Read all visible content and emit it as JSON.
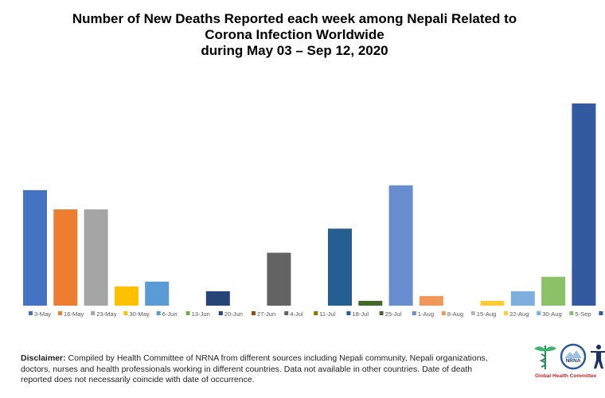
{
  "chart_data": {
    "type": "bar",
    "title_lines": [
      "Number of New Deaths Reported each week among Nepali Related to",
      "Corona Infection Worldwide",
      "during May 03 – Sep 12, 2020"
    ],
    "categories": [
      "3-May",
      "16-May",
      "23-May",
      "30-May",
      "6-Jun",
      "13-Jun",
      "20-Jun",
      "27-Jun",
      "4-Jul",
      "11-Jul",
      "18-Jul",
      "25-Jul",
      "1-Aug",
      "8-Aug",
      "15-Aug",
      "22-Aug",
      "30-Aug",
      "5-Sep",
      "12-Sep"
    ],
    "values": [
      24,
      20,
      20,
      4,
      5,
      0,
      3,
      0,
      11,
      0,
      16,
      1,
      25,
      2,
      0,
      1,
      3,
      6,
      42
    ],
    "colors": [
      "#4472C4",
      "#ED7D31",
      "#A5A5A5",
      "#FFC000",
      "#5B9BD5",
      "#70AD47",
      "#264478",
      "#9E480E",
      "#636363",
      "#997300",
      "#255E91",
      "#43682B",
      "#698ED0",
      "#F1975A",
      "#B7B7B7",
      "#FFCD33",
      "#7CAFDD",
      "#8CC168",
      "#335AA1"
    ],
    "ylim": [
      0,
      42
    ],
    "grid": false,
    "y_axis_shown": false,
    "legend_placement": "bottom"
  },
  "disclaimer": {
    "label": "Disclaimer:",
    "text": " Compiled by Health Committee of NRNA from different sources including Nepali community,  Nepali organizations, doctors, nurses and health professionals working in different countries. Data not available in other countries. Date of death reported does not necessarily coincide with date of occurrence."
  },
  "logo": {
    "emblem_text": "NRNA",
    "caption": "Global Health Committee"
  }
}
